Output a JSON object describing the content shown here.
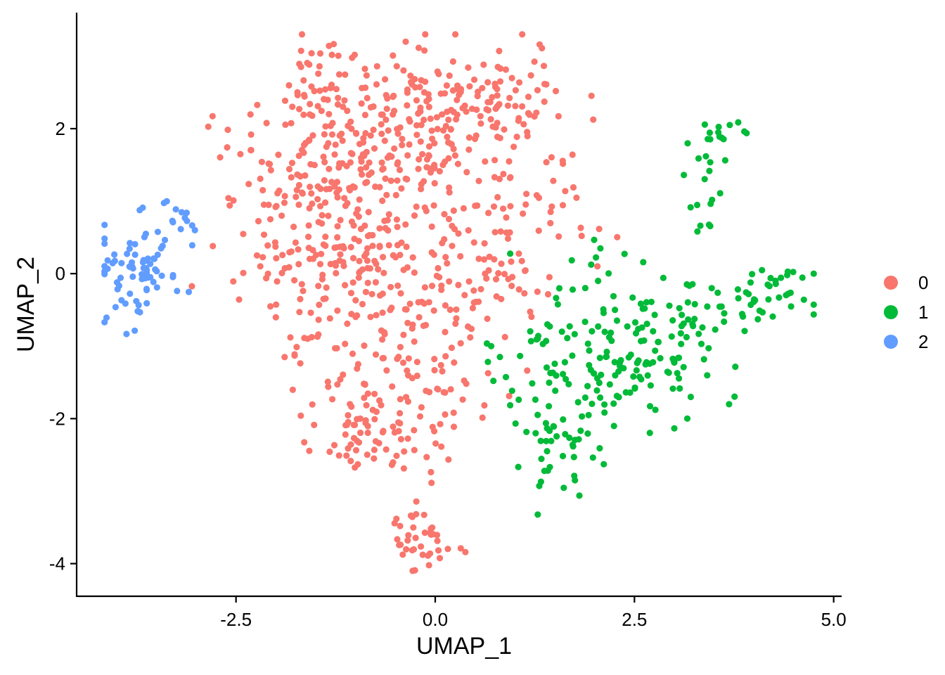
{
  "chart_data": {
    "type": "scatter",
    "title": "",
    "xlabel": "UMAP_1",
    "ylabel": "UMAP_2",
    "xlim": [
      -4.5,
      5.1
    ],
    "ylim": [
      -4.45,
      3.6
    ],
    "x_ticks": [
      -2.5,
      0.0,
      2.5,
      5.0
    ],
    "x_tick_labels": [
      "-2.5",
      "0.0",
      "2.5",
      "5.0"
    ],
    "y_ticks": [
      -4,
      -2,
      0,
      2
    ],
    "y_tick_labels": [
      "-4",
      "-2",
      "0",
      "2"
    ],
    "grid": false,
    "legend_position": "right",
    "point_generation": "approximate cluster clouds (individual cell coordinates estimated)",
    "series": [
      {
        "name": "0",
        "color": "#F8766D",
        "n_points": 900,
        "clusters": [
          {
            "cx": -1.2,
            "cy": 1.3,
            "sx": 0.7,
            "sy": 0.8,
            "n": 260
          },
          {
            "cx": 0.0,
            "cy": 2.1,
            "sx": 0.65,
            "sy": 0.55,
            "n": 130
          },
          {
            "cx": 0.8,
            "cy": 2.3,
            "sx": 0.5,
            "sy": 0.5,
            "n": 60
          },
          {
            "cx": -1.5,
            "cy": 2.7,
            "sx": 0.25,
            "sy": 0.4,
            "n": 30
          },
          {
            "cx": -0.8,
            "cy": -0.3,
            "sx": 0.9,
            "sy": 0.6,
            "n": 170
          },
          {
            "cx": 0.6,
            "cy": 0.3,
            "sx": 0.6,
            "sy": 0.5,
            "n": 60
          },
          {
            "cx": -0.5,
            "cy": -1.8,
            "sx": 0.6,
            "sy": 0.45,
            "n": 90
          },
          {
            "cx": -1.0,
            "cy": -2.3,
            "sx": 0.3,
            "sy": 0.3,
            "n": 30
          },
          {
            "cx": -0.2,
            "cy": -3.6,
            "sx": 0.25,
            "sy": 0.25,
            "n": 40
          },
          {
            "cx": 1.4,
            "cy": 0.8,
            "sx": 0.4,
            "sy": 0.4,
            "n": 20
          },
          {
            "cx": 1.1,
            "cy": 2.8,
            "sx": 0.25,
            "sy": 0.3,
            "n": 10
          }
        ]
      },
      {
        "name": "1",
        "color": "#00BA38",
        "n_points": 300,
        "clusters": [
          {
            "cx": 2.2,
            "cy": -1.2,
            "sx": 0.7,
            "sy": 0.45,
            "n": 150
          },
          {
            "cx": 1.6,
            "cy": -2.4,
            "sx": 0.3,
            "sy": 0.35,
            "n": 40
          },
          {
            "cx": 3.3,
            "cy": -0.6,
            "sx": 0.4,
            "sy": 0.2,
            "n": 30
          },
          {
            "cx": 4.2,
            "cy": -0.2,
            "sx": 0.4,
            "sy": 0.2,
            "n": 35
          },
          {
            "cx": 3.4,
            "cy": 1.2,
            "sx": 0.15,
            "sy": 0.55,
            "n": 20
          },
          {
            "cx": 2.1,
            "cy": 0.0,
            "sx": 0.4,
            "sy": 0.3,
            "n": 15
          },
          {
            "cx": 3.6,
            "cy": 1.9,
            "sx": 0.15,
            "sy": 0.15,
            "n": 10
          }
        ]
      },
      {
        "name": "2",
        "color": "#619CFF",
        "n_points": 90,
        "clusters": [
          {
            "cx": -3.8,
            "cy": 0.0,
            "sx": 0.3,
            "sy": 0.28,
            "n": 70
          },
          {
            "cx": -3.4,
            "cy": 0.55,
            "sx": 0.25,
            "sy": 0.25,
            "n": 20
          }
        ]
      }
    ]
  }
}
